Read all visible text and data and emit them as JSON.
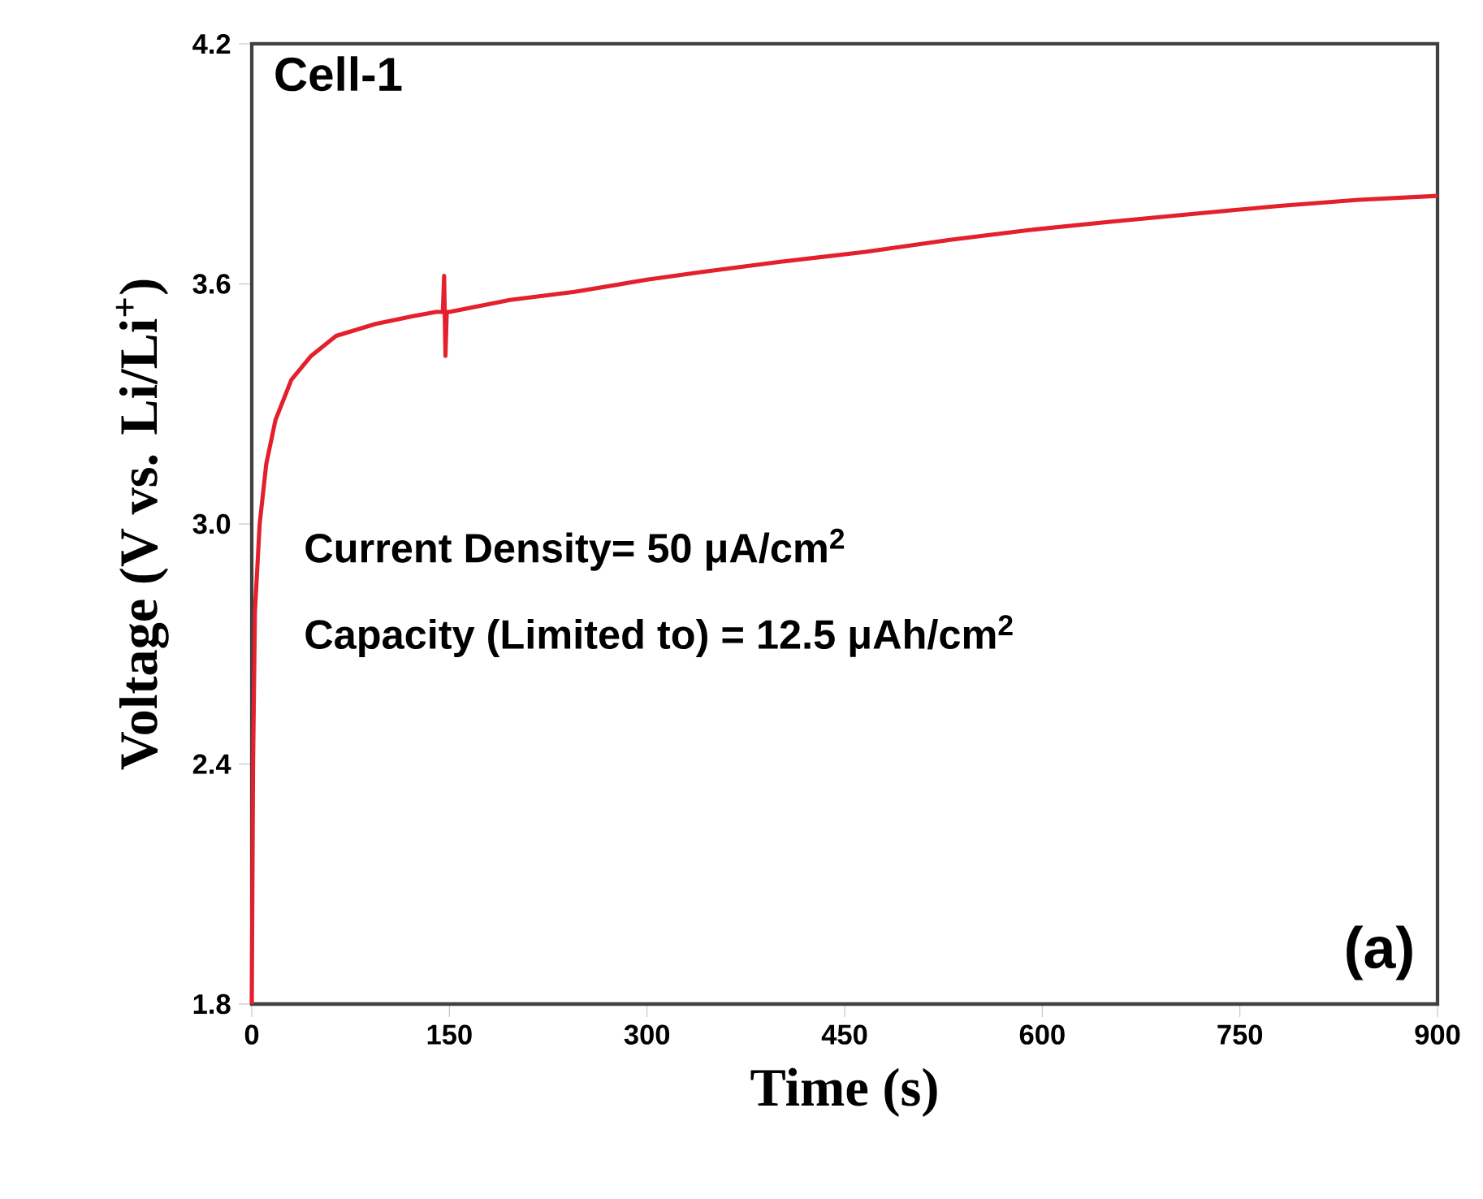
{
  "chart_data": {
    "type": "line",
    "title": "Cell-1",
    "xlabel": "Time (s)",
    "ylabel": "Voltage (V vs. Li/Li$^{+}$)",
    "annotations": [
      "Current Density= 50 μA/cm$^{2}$",
      "Capacity (Limited to) = 12.5 μAh/cm$^{2}$",
      "(a)"
    ],
    "xlim": [
      0,
      900
    ],
    "ylim": [
      1.8,
      4.2
    ],
    "xticks": [
      0,
      150,
      300,
      450,
      600,
      750,
      900
    ],
    "yticks": [
      1.8,
      2.4,
      {
        "value": 3,
        "label": "3.0"
      },
      3.6,
      4.2
    ],
    "series": [
      {
        "color": "#e3202b",
        "x": [
          0,
          1,
          2.4,
          6,
          11,
          18,
          30,
          45,
          64,
          94,
          123,
          140,
          145,
          146,
          147,
          148,
          150,
          196,
          245,
          299,
          342,
          400,
          466,
          530,
          591,
          650,
          715,
          780,
          840,
          900
        ],
        "values": [
          1.8,
          2.4,
          2.78,
          3.0,
          3.15,
          3.26,
          3.36,
          3.42,
          3.47,
          3.5,
          3.52,
          3.53,
          3.53,
          3.62,
          3.42,
          3.53,
          3.53,
          3.56,
          3.58,
          3.61,
          3.63,
          3.655,
          3.68,
          3.71,
          3.735,
          3.755,
          3.775,
          3.795,
          3.81,
          3.82
        ]
      }
    ]
  }
}
